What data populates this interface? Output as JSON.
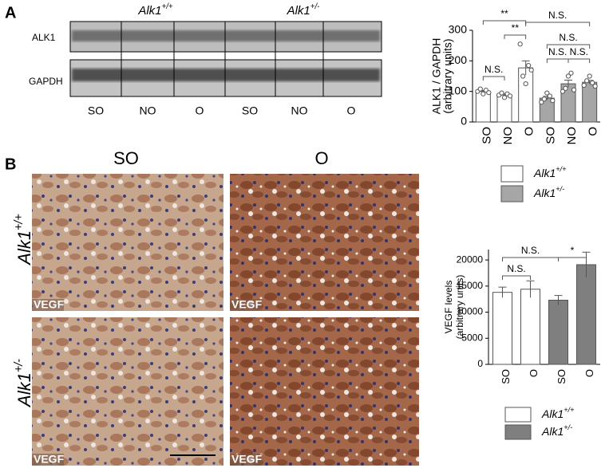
{
  "panel_labels": [
    "A",
    "B"
  ],
  "blot": {
    "groups": [
      "Alk1+/+",
      "Alk1+/-"
    ],
    "rows": [
      "ALK1",
      "GAPDH"
    ],
    "lanes": [
      "SO",
      "NO",
      "O",
      "SO",
      "NO",
      "O"
    ]
  },
  "histology": {
    "columns": [
      "SO",
      "O"
    ],
    "rows": [
      "Alk1+/+",
      "Alk1+/-"
    ],
    "stain_label": "VEGF"
  },
  "chart_data": [
    {
      "type": "bar",
      "y_label": [
        "ALK1 / GAPDH",
        "(arbitrary units)"
      ],
      "categories": [
        "SO",
        "NO",
        "O",
        "SO",
        "NO",
        "O"
      ],
      "series": [
        {
          "name": "Alk1+/+",
          "color": "#ffffff",
          "values": [
            100,
            88,
            177,
            null,
            null,
            null
          ],
          "errors": [
            3,
            4,
            23,
            null,
            null,
            null
          ],
          "points": [
            [
              100,
              108,
              92,
              104,
              96
            ],
            [
              88,
              95,
              80,
              92,
              85
            ],
            [
              255,
              150,
              125,
              185,
              170
            ],
            null,
            null,
            null
          ]
        },
        {
          "name": "Alk1+/-",
          "color": "#a6a6a6",
          "values": [
            null,
            null,
            null,
            78,
            125,
            130
          ],
          "errors": [
            null,
            null,
            null,
            6,
            12,
            6
          ],
          "points": [
            null,
            null,
            null,
            [
              65,
              75,
              95,
              85,
              70
            ],
            [
              100,
              110,
              150,
              160,
              105
            ],
            [
              120,
              135,
              150,
              128,
              117
            ]
          ]
        }
      ],
      "ylim": [
        0,
        300
      ],
      "yticks": [
        0,
        100,
        200,
        300
      ],
      "annotations": [
        "**",
        "**",
        "N.S.",
        "N.S.",
        "N.S.",
        "N.S.",
        "N.S."
      ]
    },
    {
      "type": "bar",
      "y_label": [
        "VEGF levels",
        "(arbitrary units)"
      ],
      "categories": [
        "SO",
        "O",
        "SO",
        "O"
      ],
      "series": [
        {
          "name": "Alk1+/+",
          "color": "#ffffff",
          "values": [
            13800,
            14400,
            null,
            null
          ],
          "errors": [
            1000,
            1600,
            null,
            null
          ]
        },
        {
          "name": "Alk1+/-",
          "color": "#7f7f7f",
          "values": [
            null,
            null,
            12300,
            19100
          ],
          "errors": [
            null,
            null,
            900,
            2400
          ]
        }
      ],
      "ylim": [
        0,
        22000
      ],
      "yticks": [
        0,
        5000,
        10000,
        15000,
        20000
      ],
      "annotations": [
        "N.S.",
        "N.S.",
        "*"
      ]
    }
  ]
}
